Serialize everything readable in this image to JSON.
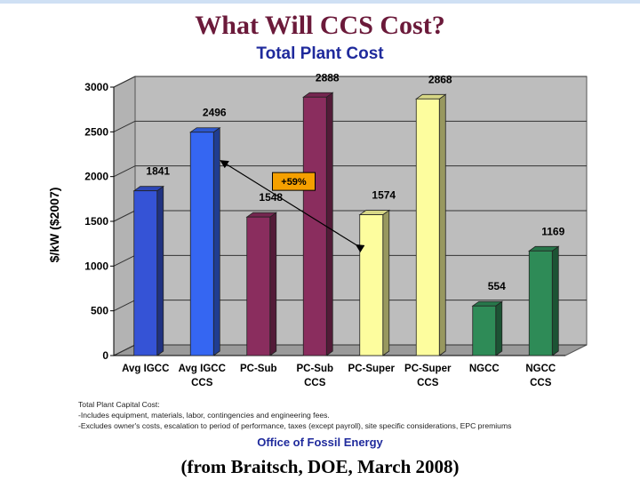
{
  "chart_data": {
    "type": "bar",
    "title": "What Will CCS Cost?",
    "subtitle": "Total Plant Cost",
    "ylabel": "$/kW ($2007)",
    "xlabel": "",
    "ylim": [
      0,
      3000
    ],
    "yticks": [
      0,
      500,
      1000,
      1500,
      2000,
      2500,
      3000
    ],
    "grid": "horizontal",
    "categories": [
      [
        "Avg IGCC"
      ],
      [
        "Avg IGCC",
        "CCS"
      ],
      [
        "PC-Sub"
      ],
      [
        "PC-Sub",
        "CCS"
      ],
      [
        "PC-Super"
      ],
      [
        "PC-Super",
        "CCS"
      ],
      [
        "NGCC"
      ],
      [
        "NGCC",
        "CCS"
      ]
    ],
    "values": [
      1841,
      2496,
      1548,
      2888,
      1574,
      2868,
      554,
      1169
    ],
    "data_labels": [
      "1841",
      "2496",
      "1548",
      "2888",
      "1574",
      "2868",
      "554",
      "1169"
    ],
    "colors": [
      "#3553d6",
      "#3566f2",
      "#8a2d5e",
      "#8a2d5e",
      "#fdfd9e",
      "#fdfd9e",
      "#2e8b57",
      "#2e8b57"
    ],
    "annotation": {
      "text": "+59%",
      "arrow_from_category": 1,
      "arrow_to_category": 4,
      "box_color": "#f5a000"
    }
  },
  "footnotes": [
    "Total Plant Capital Cost:",
    "-Includes equipment, materials, labor, contingencies and engineering fees.",
    "-Excludes owner's costs, escalation to period of performance, taxes (except payroll), site specific considerations, EPC premiums"
  ],
  "office": "Office of Fossil Energy",
  "source": "(from Braitsch, DOE, March 2008)"
}
